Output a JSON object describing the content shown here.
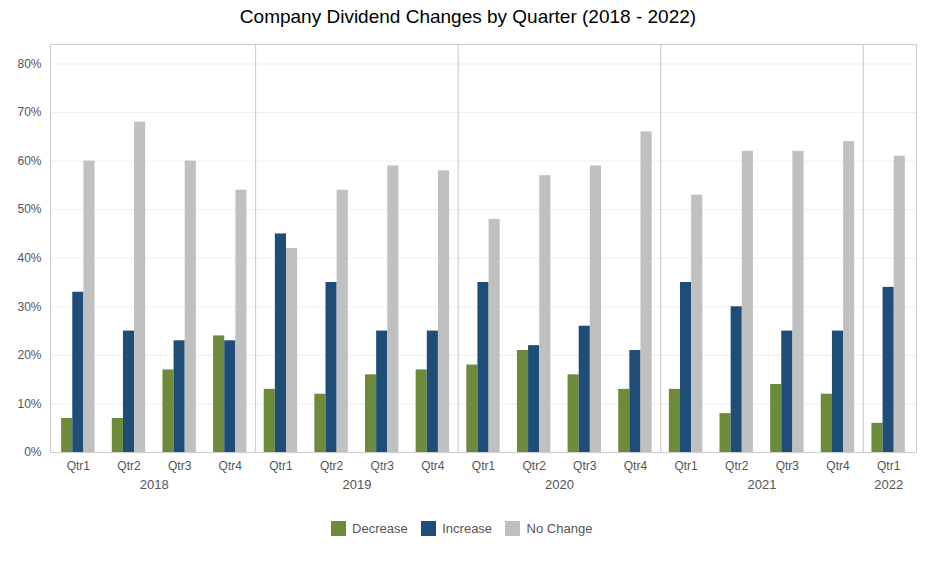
{
  "chart_data": {
    "type": "bar",
    "title": "Company Dividend Changes by Quarter (2018 - 2022)",
    "categories": [
      "Qtr1",
      "Qtr2",
      "Qtr3",
      "Qtr4",
      "Qtr1",
      "Qtr2",
      "Qtr3",
      "Qtr4",
      "Qtr1",
      "Qtr2",
      "Qtr3",
      "Qtr4",
      "Qtr1",
      "Qtr2",
      "Qtr3",
      "Qtr4",
      "Qtr1"
    ],
    "groups": [
      {
        "label": "2018",
        "count": 4
      },
      {
        "label": "2019",
        "count": 4
      },
      {
        "label": "2020",
        "count": 4
      },
      {
        "label": "2021",
        "count": 4
      },
      {
        "label": "2022",
        "count": 1
      }
    ],
    "series": [
      {
        "name": "Decrease",
        "color": "#6d8b3a",
        "values": [
          0.07,
          0.07,
          0.17,
          0.24,
          0.13,
          0.12,
          0.16,
          0.17,
          0.18,
          0.21,
          0.16,
          0.13,
          0.13,
          0.08,
          0.14,
          0.12,
          0.06
        ]
      },
      {
        "name": "Increase",
        "color": "#1e4d78",
        "values": [
          0.33,
          0.25,
          0.23,
          0.23,
          0.45,
          0.35,
          0.25,
          0.25,
          0.35,
          0.22,
          0.26,
          0.21,
          0.35,
          0.3,
          0.25,
          0.25,
          0.34
        ]
      },
      {
        "name": "No Change",
        "color": "#c0c0c0",
        "values": [
          0.6,
          0.68,
          0.6,
          0.54,
          0.42,
          0.54,
          0.59,
          0.58,
          0.48,
          0.57,
          0.59,
          0.66,
          0.53,
          0.62,
          0.62,
          0.64,
          0.61
        ]
      }
    ],
    "ylim": [
      0,
      0.84
    ],
    "yticks": [
      {
        "value": 0.0,
        "label": "0%"
      },
      {
        "value": 0.1,
        "label": "10%"
      },
      {
        "value": 0.2,
        "label": "20%"
      },
      {
        "value": 0.3,
        "label": "30%"
      },
      {
        "value": 0.4,
        "label": "40%"
      },
      {
        "value": 0.5,
        "label": "50%"
      },
      {
        "value": 0.6,
        "label": "60%"
      },
      {
        "value": 0.7,
        "label": "70%"
      },
      {
        "value": 0.8,
        "label": "80%"
      }
    ],
    "grid": true,
    "legend": "bottom"
  }
}
